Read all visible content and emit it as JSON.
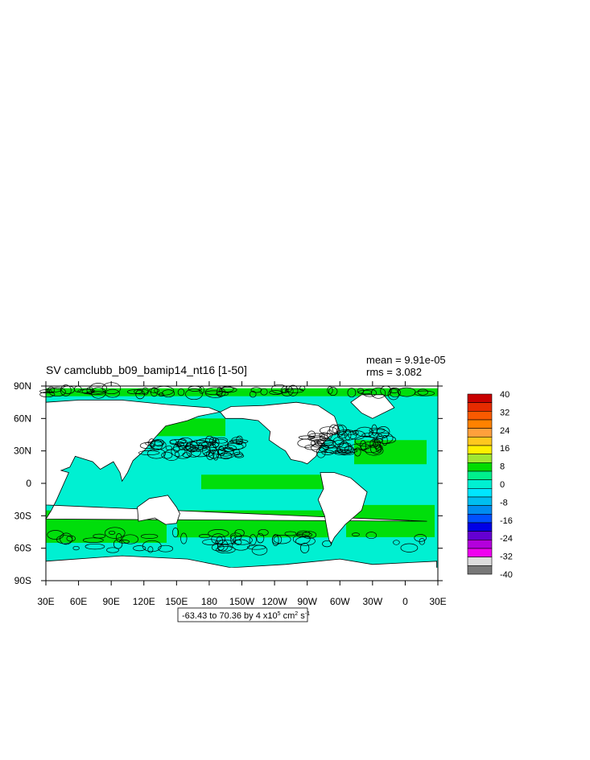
{
  "title": "SV camclubb_b09_bamip14_nt16 [1-50]",
  "stats": {
    "mean": "mean = 9.91e-05",
    "rms": "rms = 3.082"
  },
  "axes": {
    "x_ticks": [
      "30E",
      "60E",
      "90E",
      "120E",
      "150E",
      "180",
      "150W",
      "120W",
      "90W",
      "60W",
      "30W",
      "0",
      "30E"
    ],
    "y_ticks": [
      "90N",
      "60N",
      "30N",
      "0",
      "30S",
      "60S",
      "90S"
    ]
  },
  "info_box": {
    "range_text": "-63.43 to 70.36 by 4 x10",
    "exp": "5",
    "unit_text": " cm",
    "unit_exp": "2",
    "unit_tail": " s",
    "unit_tail_exp": "-1"
  },
  "colorbar": {
    "labels": [
      "40",
      "32",
      "24",
      "16",
      "8",
      "0",
      "-8",
      "-16",
      "-24",
      "-32",
      "-40"
    ],
    "colors": [
      "#c80000",
      "#e62b00",
      "#fa5a00",
      "#ff8200",
      "#ffa03c",
      "#ffc81e",
      "#fff000",
      "#a0e632",
      "#00dc00",
      "#00f08c",
      "#00f0d2",
      "#00e6ff",
      "#00bef0",
      "#008cf0",
      "#0050ff",
      "#0000e6",
      "#6400d2",
      "#b400dc",
      "#f000f0",
      "#dcdcdc",
      "#787878"
    ]
  },
  "map_colors": {
    "ocean_main": "#00f0d2",
    "ocean_band": "#00dc00",
    "land": "#ffffff",
    "contour": "#000000"
  }
}
